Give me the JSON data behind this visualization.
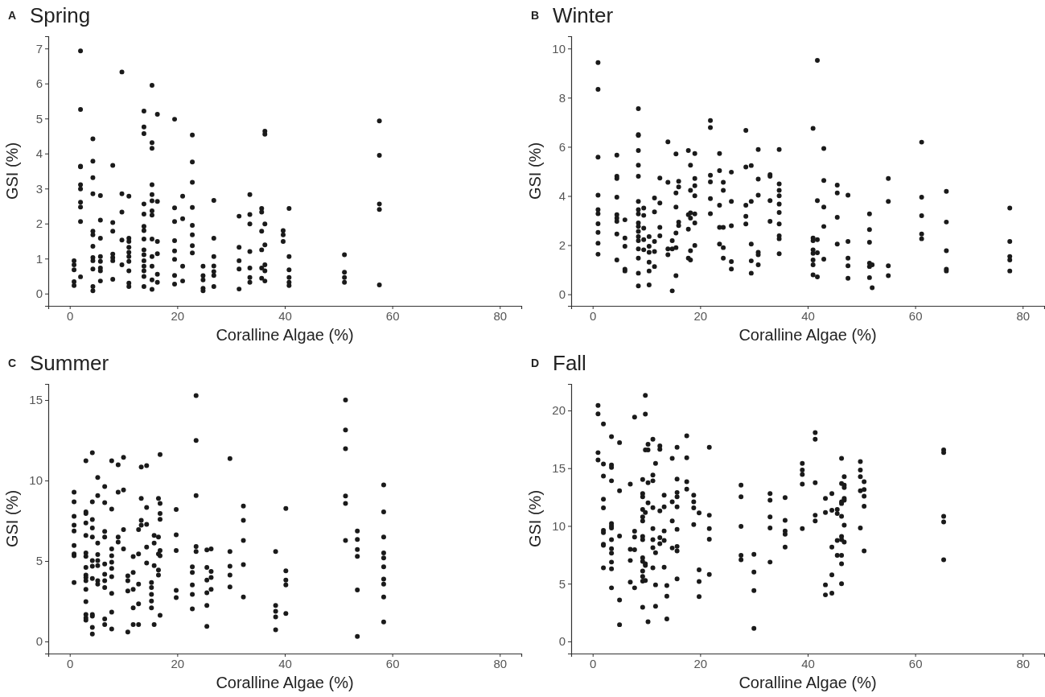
{
  "chart_data": [
    {
      "type": "scatter",
      "title": "Spring",
      "annotations": [
        "A"
      ],
      "xlabel": "Coralline Algae (%)",
      "ylabel": "GSI (%)",
      "color": "#1a1a1a",
      "marker": "circle",
      "grid": false,
      "xlim": [
        -4,
        84
      ],
      "ylim": [
        -0.35,
        7.35
      ],
      "xticks": [
        0,
        20,
        40,
        60,
        80
      ],
      "yticks": [
        0,
        1,
        2,
        3,
        4,
        5,
        6,
        7
      ],
      "x": [
        0.8,
        0.8,
        0.8,
        0.8,
        0.8,
        2,
        2,
        2,
        2,
        2,
        2,
        2,
        2,
        2,
        2,
        4.3,
        4.3,
        4.3,
        4.3,
        4.3,
        4.3,
        4.3,
        4.3,
        4.3,
        4.3,
        4.3,
        4.3,
        5.7,
        5.7,
        5.7,
        5.7,
        5.7,
        5.7,
        5.7,
        5.7,
        8,
        8,
        8,
        8,
        8,
        8,
        8,
        9.7,
        9.7,
        9.7,
        9.7,
        9.7,
        11,
        11,
        11,
        11,
        11,
        11,
        11,
        11,
        11,
        11,
        13.8,
        13.8,
        13.8,
        13.8,
        13.8,
        13.8,
        13.8,
        13.8,
        13.8,
        13.8,
        13.8,
        13.8,
        13.8,
        13.8,
        13.8,
        15.3,
        15.3,
        15.3,
        15.3,
        15.3,
        15.3,
        15.3,
        15.3,
        15.3,
        15.3,
        15.3,
        15.3,
        15.3,
        16.3,
        16.3,
        16.3,
        16.3,
        16.3,
        16.3,
        19.5,
        19.5,
        19.5,
        19.5,
        19.5,
        19.5,
        19.5,
        19.5,
        21,
        21,
        21,
        21,
        22.8,
        22.8,
        22.8,
        22.8,
        22.8,
        22.8,
        22.8,
        22.8,
        24.8,
        24.8,
        24.8,
        24.8,
        24.8,
        26.8,
        26.8,
        26.8,
        26.8,
        26.8,
        26.8,
        26.8,
        31.5,
        31.5,
        31.5,
        31.5,
        31.5,
        33.5,
        33.5,
        33.5,
        33.5,
        33.5,
        33.5,
        33.5,
        35.7,
        35.7,
        35.7,
        35.7,
        35.7,
        35.7,
        36.3,
        36.3,
        36.3,
        36.3,
        36.3,
        36.3,
        36.3,
        39.7,
        39.7,
        39.7,
        40.8,
        40.8,
        40.8,
        40.8,
        40.8,
        40.8,
        51.1,
        51.1,
        51.1,
        51.1,
        57.6,
        57.6,
        57.6,
        57.6,
        57.6
      ],
      "values": [
        0.94,
        0.82,
        0.68,
        0.34,
        0.23,
        6.93,
        5.26,
        3.64,
        3.62,
        3.11,
        2.99,
        2.61,
        2.47,
        2.06,
        0.48,
        4.42,
        3.78,
        3.31,
        2.85,
        1.78,
        1.68,
        1.35,
        1.03,
        0.94,
        0.7,
        0.2,
        0.08,
        2.8,
        2.1,
        1.58,
        1.06,
        0.92,
        0.73,
        0.65,
        0.36,
        3.66,
        2.03,
        1.78,
        1.13,
        1.03,
        0.94,
        0.41,
        6.33,
        2.85,
        2.33,
        1.53,
        0.82,
        2.78,
        1.58,
        1.49,
        1.32,
        1.18,
        1.06,
        0.92,
        0.65,
        0.3,
        0.2,
        5.21,
        4.76,
        4.57,
        2.56,
        2.27,
        1.92,
        1.8,
        1.56,
        1.25,
        1.11,
        0.94,
        0.78,
        0.65,
        0.49,
        0.2,
        5.95,
        4.31,
        4.15,
        3.11,
        2.83,
        2.65,
        2.36,
        2.24,
        1.56,
        1.06,
        0.78,
        0.39,
        0.12,
        5.12,
        2.63,
        1.49,
        1.14,
        0.55,
        0.32,
        4.98,
        2.45,
        2.06,
        1.51,
        1.22,
        0.98,
        0.52,
        0.27,
        2.78,
        2.14,
        0.78,
        0.36,
        4.53,
        3.76,
        3.18,
        2.46,
        1.95,
        1.68,
        1.37,
        1.16,
        0.78,
        0.51,
        0.39,
        0.15,
        0.08,
        2.66,
        1.58,
        1.06,
        0.79,
        0.63,
        0.52,
        0.2,
        2.21,
        1.32,
        0.94,
        0.7,
        0.13,
        2.83,
        2.26,
        1.99,
        1.2,
        0.73,
        0.46,
        0.32,
        2.43,
        2.33,
        1.78,
        1.25,
        0.73,
        0.44,
        4.64,
        4.55,
        1.99,
        1.39,
        0.82,
        0.65,
        0.36,
        1.8,
        1.68,
        1.49,
        2.43,
        1.06,
        0.68,
        0.46,
        0.32,
        0.23,
        1.11,
        0.61,
        0.46,
        0.32,
        4.93,
        3.95,
        2.56,
        2.4,
        0.25
      ]
    },
    {
      "type": "scatter",
      "title": "Winter",
      "annotations": [
        "B"
      ],
      "xlabel": "Coralline Algae (%)",
      "ylabel": "GSI (%)",
      "color": "#1a1a1a",
      "marker": "circle",
      "grid": false,
      "xlim": [
        -4,
        84
      ],
      "ylim": [
        -0.47,
        10.5
      ],
      "xticks": [
        0,
        20,
        40,
        60,
        80
      ],
      "yticks": [
        0,
        2,
        4,
        6,
        8,
        10
      ],
      "x": [
        1,
        1,
        1,
        1,
        1,
        1,
        1,
        1,
        1,
        1,
        4.5,
        4.5,
        4.5,
        4.5,
        4.5,
        4.5,
        4.5,
        4.5,
        4.5,
        6,
        6,
        6,
        6,
        6,
        8.5,
        8.5,
        8.5,
        8.5,
        8.5,
        8.5,
        8.5,
        8.5,
        8.5,
        8.5,
        8.5,
        8.5,
        8.5,
        8.5,
        8.5,
        8.5,
        8.5,
        8.5,
        9.5,
        9.5,
        9.5,
        9.5,
        9.5,
        10.5,
        10.5,
        10.5,
        10.5,
        10.5,
        10.5,
        11.5,
        11.5,
        11.5,
        11.5,
        11.5,
        12.5,
        12.5,
        12.5,
        12.5,
        14,
        14,
        14,
        14,
        14.8,
        14.8,
        14.8,
        15.5,
        15.5,
        15.5,
        15.5,
        15.5,
        15.5,
        16,
        16,
        16,
        16,
        17.8,
        17.8,
        17.8,
        17.8,
        18.2,
        18.2,
        18.2,
        18.2,
        18.2,
        18.2,
        19,
        19,
        19,
        19,
        19,
        19,
        19,
        21.9,
        21.9,
        21.9,
        21.9,
        21.9,
        21.9,
        23.6,
        23.6,
        23.6,
        23.6,
        23.6,
        24.3,
        24.3,
        24.3,
        24.3,
        24.3,
        25.8,
        25.8,
        25.8,
        25.8,
        25.8,
        28.5,
        28.5,
        28.5,
        28.5,
        28.5,
        29.5,
        29.5,
        29.5,
        29.5,
        29.5,
        30.8,
        30.8,
        30.8,
        30.8,
        30.8,
        30.8,
        33,
        33,
        33,
        33,
        34.7,
        34.7,
        34.7,
        34.7,
        34.7,
        34.7,
        34.7,
        34.7,
        34.7,
        34.7,
        41,
        41,
        41,
        41,
        41,
        41,
        41,
        41,
        41.8,
        41.8,
        41.8,
        41.8,
        41.8,
        43,
        43,
        43,
        43,
        43,
        45.5,
        45.5,
        45.5,
        45.5,
        47.5,
        47.5,
        47.5,
        47.5,
        47.5,
        51.5,
        51.5,
        51.5,
        51.5,
        51.5,
        51.5,
        52,
        52,
        55,
        55,
        55,
        55,
        61.2,
        61.2,
        61.2,
        61.2,
        61.2,
        65.8,
        65.8,
        65.8,
        65.8,
        65.8,
        77.6,
        77.6,
        77.6,
        77.6,
        77.6
      ],
      "values": [
        9.43,
        8.34,
        5.58,
        4.03,
        3.44,
        3.28,
        2.87,
        2.52,
        2.08,
        1.63,
        5.66,
        4.8,
        4.71,
        3.95,
        3.24,
        3.1,
        2.97,
        2.45,
        1.4,
        3.03,
        2.29,
        1.95,
        1.02,
        0.95,
        7.55,
        6.5,
        6.46,
        5.85,
        5.25,
        4.8,
        3.78,
        3.44,
        3.27,
        2.9,
        2.76,
        2.56,
        2.35,
        2.18,
        1.85,
        1.47,
        0.86,
        0.34,
        3.51,
        3.21,
        2.69,
        2.22,
        1.81,
        2.35,
        1.95,
        1.71,
        1.31,
        0.95,
        0.38,
        3.92,
        3.35,
        2.15,
        1.74,
        1.13,
        4.73,
        3.71,
        2.72,
        2.38,
        6.2,
        4.56,
        1.85,
        1.61,
        2.18,
        1.85,
        0.14,
        5.71,
        4.12,
        3.55,
        2.49,
        1.9,
        0.76,
        4.6,
        4.37,
        2.94,
        2.8,
        5.85,
        3.24,
        2.65,
        1.47,
        5.25,
        4.23,
        3.31,
        3.1,
        1.77,
        1.4,
        5.73,
        4.71,
        4.42,
        4.01,
        3.27,
        2.9,
        1.99,
        7.07,
        6.78,
        4.84,
        4.57,
        3.89,
        3.28,
        5.73,
        5.03,
        3.62,
        2.72,
        2.04,
        4.56,
        4.23,
        2.72,
        1.9,
        1.47,
        4.97,
        3.78,
        2.79,
        1.33,
        1.03,
        6.67,
        5.18,
        3.62,
        3.17,
        2.86,
        5.24,
        3.78,
        2.04,
        1.36,
        0.86,
        5.89,
        4.69,
        4.03,
        1.71,
        1.61,
        1.2,
        4.87,
        4.8,
        3.81,
        2.97,
        5.89,
        4.49,
        4.23,
        4.01,
        3.67,
        3.33,
        2.86,
        2.38,
        2.26,
        1.65,
        6.75,
        2.29,
        2.18,
        1.81,
        1.67,
        1.4,
        1.2,
        0.79,
        9.52,
        3.81,
        2.22,
        1.69,
        0.71,
        5.93,
        4.63,
        3.55,
        2.76,
        1.43,
        4.44,
        4.12,
        3.13,
        2.04,
        4.03,
        2.15,
        1.47,
        1.16,
        0.65,
        3.27,
        2.63,
        2.12,
        1.27,
        1.13,
        0.68,
        1.2,
        0.27,
        4.71,
        3.78,
        1.16,
        0.76,
        6.19,
        3.95,
        3.2,
        2.45,
        2.26,
        4.19,
        2.94,
        1.77,
        1.02,
        0.95,
        3.51,
        2.15,
        1.54,
        1.4,
        0.95
      ]
    },
    {
      "type": "scatter",
      "title": "Summer",
      "annotations": [
        "C"
      ],
      "xlabel": "Coralline Algae (%)",
      "ylabel": "GSI (%)",
      "color": "#1a1a1a",
      "marker": "circle",
      "grid": false,
      "xlim": [
        -4,
        84
      ],
      "ylim": [
        -0.75,
        16
      ],
      "xticks": [
        0,
        20,
        40,
        60,
        80
      ],
      "yticks": [
        0,
        5,
        10,
        15
      ],
      "x": [
        0.8,
        0.8,
        0.8,
        0.8,
        0.8,
        0.8,
        0.8,
        0.8,
        0.8,
        3,
        3,
        3,
        3,
        3,
        3,
        3,
        3,
        3,
        3,
        3,
        3,
        3,
        3,
        3,
        3,
        4.2,
        4.2,
        4.2,
        4.2,
        4.2,
        4.2,
        4.2,
        4.2,
        4.2,
        4.2,
        4.2,
        4.2,
        5.2,
        5.2,
        5.2,
        5.2,
        5.2,
        5.2,
        5.2,
        5.2,
        6.5,
        6.5,
        6.5,
        6.5,
        6.5,
        6.5,
        6.5,
        6.5,
        6.5,
        6.5,
        7.8,
        7.8,
        7.8,
        7.8,
        7.8,
        7.8,
        7.8,
        7.8,
        7.8,
        7.8,
        9,
        9,
        9,
        9,
        10,
        10,
        10,
        10,
        10.8,
        10.8,
        10.8,
        10.8,
        11.8,
        11.8,
        11.8,
        11.8,
        11.8,
        12.8,
        12.8,
        12.8,
        12.8,
        12.8,
        13.3,
        13.3,
        13.3,
        13.3,
        14.3,
        14.3,
        14.3,
        14.3,
        14.3,
        15.2,
        15.2,
        15.2,
        15.2,
        15.2,
        15.7,
        15.7,
        15.7,
        15.7,
        16.5,
        16.5,
        16.5,
        16.5,
        16.5,
        16.8,
        16.8,
        16.8,
        16.8,
        16.8,
        16.8,
        16.8,
        19.8,
        19.8,
        19.8,
        19.8,
        19.8,
        22.8,
        22.8,
        22.8,
        22.8,
        22.8,
        23.5,
        23.5,
        23.5,
        23.5,
        23.5,
        25.5,
        25.5,
        25.5,
        25.5,
        25.5,
        25.5,
        26.3,
        26.3,
        26.3,
        26.3,
        29.8,
        29.8,
        29.8,
        29.8,
        29.8,
        32.3,
        32.3,
        32.3,
        32.3,
        32.3,
        38.3,
        38.3,
        38.3,
        38.3,
        38.3,
        40.2,
        40.2,
        40.2,
        40.2,
        40.2,
        51.3,
        51.3,
        51.3,
        51.3,
        51.3,
        51.3,
        53.5,
        53.5,
        53.5,
        53.5,
        53.5,
        53.5,
        58.4,
        58.4,
        58.4,
        58.4,
        58.4,
        58.4,
        58.4,
        58.4,
        58.4,
        58.4
      ],
      "values": [
        9.27,
        8.68,
        7.78,
        7.22,
        6.86,
        5.96,
        5.44,
        5.33,
        3.66,
        11.23,
        8.05,
        7.95,
        7.36,
        6.59,
        5.5,
        5.29,
        4.6,
        4.12,
        3.97,
        3.77,
        3.24,
        2.47,
        1.67,
        1.46,
        1.32,
        11.72,
        8.68,
        7.57,
        7.05,
        6.49,
        5.02,
        4.67,
        3.91,
        1.67,
        1.57,
        0.88,
        0.46,
        10.19,
        9.06,
        6.11,
        5.4,
        5.02,
        4.71,
        3.77,
        3.56,
        9.62,
        8.62,
        6.84,
        6.49,
        4.81,
        4.18,
        3.77,
        3.35,
        1.4,
        1.05,
        11.23,
        8.22,
        5.75,
        5.33,
        4.92,
        4.54,
        4.02,
        2.99,
        1.82,
        0.77,
        10.98,
        9.27,
        6.49,
        6.17,
        11.44,
        9.41,
        6.95,
        5.75,
        4.08,
        3.77,
        3.14,
        0.59,
        5.27,
        4.29,
        3.24,
        2.09,
        1.05,
        6.95,
        5.44,
        3.56,
        2.34,
        1.05,
        10.84,
        8.89,
        7.53,
        7.22,
        10.92,
        8.33,
        7.28,
        5.86,
        4.87,
        3.66,
        3.35,
        2.93,
        2.51,
        2.09,
        6.59,
        6.11,
        4.71,
        1.05,
        8.89,
        6.49,
        5.44,
        4.44,
        4.12,
        11.61,
        8.58,
        7.95,
        7.59,
        5.65,
        5.33,
        1.63,
        8.2,
        6.63,
        5.65,
        3.18,
        2.72,
        4.64,
        4.29,
        3.51,
        2.93,
        2.03,
        15.27,
        12.49,
        9.06,
        5.9,
        5.59,
        5.69,
        4.6,
        3.81,
        3.03,
        2.24,
        0.94,
        5.75,
        4.35,
        3.97,
        3.24,
        11.36,
        5.59,
        4.67,
        4.12,
        3.39,
        8.41,
        7.53,
        6.28,
        4.77,
        2.76,
        5.59,
        2.24,
        1.88,
        1.53,
        0.73,
        8.26,
        4.39,
        3.81,
        3.51,
        1.74,
        15,
        13.14,
        11.97,
        9.04,
        8.58,
        6.28,
        6.86,
        6.34,
        5.71,
        5.29,
        3.2,
        0.31,
        9.73,
        8.05,
        6.49,
        5.5,
        5.19,
        4.64,
        3.87,
        3.56,
        2.76,
        1.21
      ]
    },
    {
      "type": "scatter",
      "title": "Fall",
      "annotations": [
        "D"
      ],
      "xlabel": "Coralline Algae (%)",
      "ylabel": "GSI (%)",
      "color": "#1a1a1a",
      "marker": "circle",
      "grid": false,
      "xlim": [
        -4,
        84
      ],
      "ylim": [
        -1.05,
        22.3
      ],
      "xticks": [
        0,
        20,
        40,
        60,
        80
      ],
      "yticks": [
        0,
        5,
        10,
        15,
        20
      ],
      "x": [
        1,
        1,
        1,
        1,
        2,
        2,
        2,
        2,
        2,
        2,
        2,
        2,
        2,
        2,
        3.5,
        3.5,
        3.5,
        3.5,
        3.5,
        3.5,
        3.5,
        3.5,
        3.5,
        3.5,
        3.5,
        3.5,
        3.5,
        5,
        5,
        5,
        5,
        5,
        7,
        7,
        7,
        7,
        7.8,
        7.8,
        7.8,
        7.8,
        7.8,
        9.3,
        9.3,
        9.3,
        9.3,
        9.3,
        9.3,
        9.3,
        9.3,
        9.3,
        9.3,
        9.3,
        9.3,
        9.3,
        9.3,
        9.8,
        9.8,
        9.8,
        9.8,
        9.8,
        9.8,
        9.8,
        10.3,
        10.3,
        10.3,
        10.3,
        10.3,
        11.2,
        11.2,
        11.2,
        11.2,
        11.2,
        11.2,
        11.2,
        11.2,
        11.7,
        11.7,
        11.7,
        11.7,
        12.5,
        12.5,
        12.5,
        12.5,
        12.5,
        13.3,
        13.3,
        13.3,
        13.3,
        13.3,
        13.8,
        13.8,
        13.8,
        14.8,
        14.8,
        14.8,
        14.8,
        15.7,
        15.7,
        15.7,
        15.7,
        15.7,
        15.7,
        15.7,
        15.7,
        15.7,
        17.5,
        17.5,
        17.5,
        17.5,
        18.8,
        18.8,
        18.8,
        18.8,
        19.8,
        19.8,
        19.8,
        19.8,
        21.7,
        21.7,
        21.7,
        21.7,
        21.7,
        27.6,
        27.6,
        27.6,
        27.6,
        27.6,
        30,
        30,
        30,
        30,
        33,
        33,
        33,
        33,
        33,
        35.8,
        35.8,
        35.8,
        35.8,
        35.8,
        39,
        39,
        39,
        39,
        39,
        41.4,
        41.4,
        41.4,
        41.4,
        41.4,
        43.3,
        43.3,
        43.3,
        43.3,
        44.5,
        44.5,
        44.5,
        44.5,
        44.5,
        45.5,
        45.5,
        45.5,
        45.5,
        46.3,
        46.3,
        46.3,
        46.3,
        46.3,
        46.3,
        46.3,
        46.3,
        46.3,
        46.3,
        46.8,
        46.8,
        46.8,
        46.8,
        46.8,
        46.8,
        46.8,
        49.8,
        49.8,
        49.8,
        49.8,
        49.8,
        50.5,
        50.5,
        50.5,
        50.5,
        50.5,
        65.3,
        65.3,
        65.3,
        65.3,
        65.3
      ],
      "values": [
        20.43,
        19.71,
        16.35,
        15.71,
        18.84,
        15.36,
        14.32,
        12.32,
        11.57,
        9.62,
        9.42,
        8.41,
        8.32,
        6.38,
        17.74,
        15.28,
        15.07,
        13.91,
        10.2,
        10,
        9.83,
        8.81,
        8.03,
        7.65,
        6.87,
        6.29,
        4.64,
        17.22,
        13.04,
        9.13,
        3.59,
        1.45,
        13.62,
        7.97,
        7.01,
        5.13,
        19.42,
        9.54,
        9.04,
        7.94,
        4.64,
        14.03,
        12.81,
        12.52,
        11.42,
        10.78,
        10.43,
        9.1,
        8.81,
        7.25,
        6.93,
        6.09,
        5.62,
        5.22,
        2.96,
        21.3,
        19.68,
        16.58,
        11.16,
        6.72,
        6.58,
        5.28,
        17.07,
        16.58,
        13.74,
        12,
        1.71,
        17.51,
        14.41,
        13.91,
        11.59,
        9.77,
        8.81,
        8.12,
        6.38,
        15.42,
        7.68,
        4.9,
        3.04,
        16.93,
        16.64,
        11.3,
        8.99,
        8.46,
        12.67,
        11.65,
        9.57,
        8.75,
        6.43,
        4.84,
        3.91,
        1.94,
        15.86,
        12.09,
        10.43,
        8.09,
        16.81,
        14.06,
        12.9,
        12.52,
        11.65,
        9.71,
        8.23,
        7.83,
        5.42,
        17.8,
        15.91,
        13.83,
        13.19,
        12.67,
        12.09,
        11.57,
        10.12,
        11.13,
        6.2,
        5.19,
        3.88,
        16.81,
        10.93,
        9.77,
        8.84,
        5.8,
        13.54,
        12.52,
        9.97,
        7.45,
        7.07,
        7.54,
        6,
        4.41,
        1.13,
        12.81,
        12.23,
        10.78,
        9.83,
        6.87,
        12.46,
        10.49,
        9.57,
        9.28,
        8.17,
        15.42,
        14.84,
        14.46,
        13.62,
        9.77,
        18.09,
        17.51,
        13.74,
        10.93,
        10.43,
        12.38,
        11.16,
        4.9,
        4.03,
        12.81,
        11.36,
        8.17,
        5.77,
        4.17,
        11.42,
        11.07,
        8.75,
        7.45,
        15.86,
        13.68,
        12.09,
        11.94,
        10.84,
        9.1,
        8.81,
        7.45,
        6.72,
        4.99,
        14.26,
        13.54,
        13.33,
        12.38,
        12.23,
        10.06,
        8.61,
        15.57,
        14.84,
        14.26,
        13.04,
        9.83,
        13.83,
        13.16,
        12.58,
        11.71,
        7.83,
        16.58,
        16.35,
        10.84,
        10.35,
        7.07
      ]
    }
  ]
}
